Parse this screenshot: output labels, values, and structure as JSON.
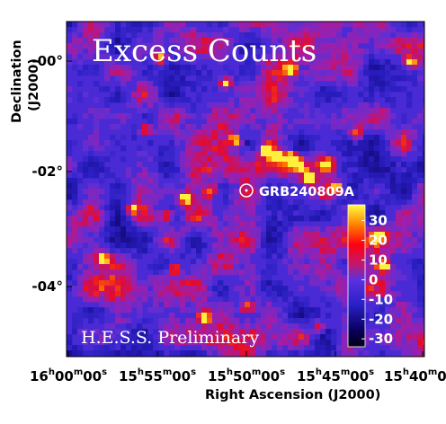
{
  "chart_data": {
    "type": "heatmap",
    "title": "Excess Counts",
    "annotation": "H.E.S.S. Preliminary",
    "xlabel": "Right Ascension (J2000)",
    "ylabel_line1": "Declination",
    "ylabel_line2": "(J2000)",
    "x_ticks": [
      {
        "h": "16",
        "m": "00",
        "s": "00"
      },
      {
        "h": "15",
        "m": "55",
        "s": "00"
      },
      {
        "h": "15",
        "m": "50",
        "s": "00"
      },
      {
        "h": "15",
        "m": "45",
        "s": "00"
      },
      {
        "h": "15",
        "m": "40",
        "s": "00"
      }
    ],
    "x_unit_h": "h",
    "x_unit_m": "m",
    "x_unit_s": "s",
    "y_ticks": [
      "-00°",
      "-02°",
      "-04°"
    ],
    "colorbar": {
      "range": [
        -34,
        38
      ],
      "ticks": [
        "30",
        "20",
        "10",
        "0",
        "-10",
        "-20",
        "-30"
      ]
    },
    "source": {
      "name": "GRB240809A"
    }
  }
}
